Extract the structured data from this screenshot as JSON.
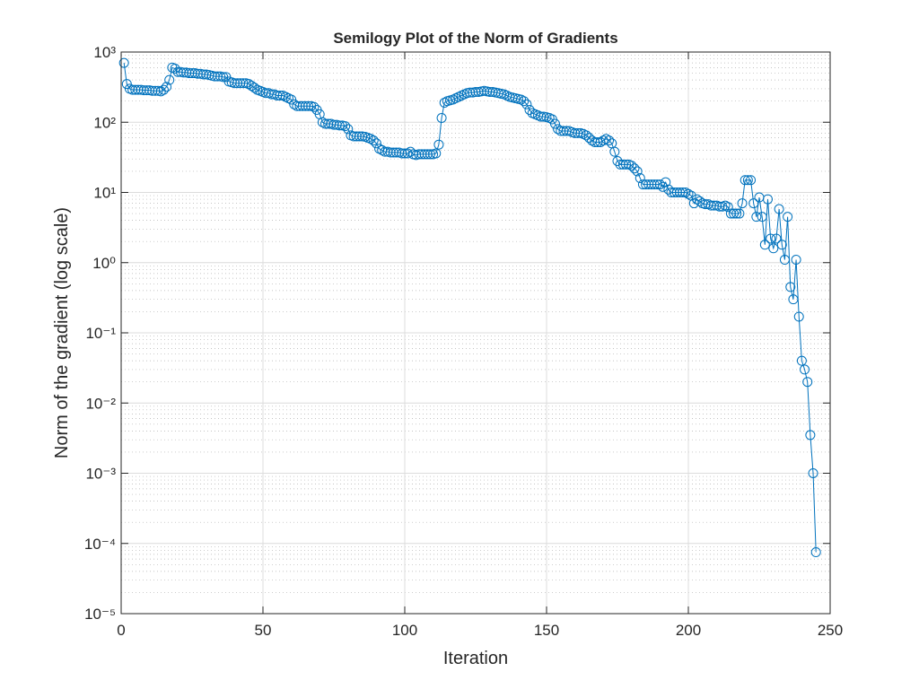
{
  "chart_data": {
    "type": "line",
    "title": "Semilogy Plot of the Norm of Gradients",
    "x_label": "Iteration",
    "y_label": "Norm of the gradient (log scale)",
    "y_scale": "log",
    "grid": true,
    "minor_grid": true,
    "marker": "circle",
    "xlim": [
      0,
      250
    ],
    "xticks": [
      0,
      50,
      100,
      150,
      200,
      250
    ],
    "ylim": [
      1e-05,
      1000
    ],
    "yticks": [
      {
        "value": 1e-05,
        "label": "10⁻⁵"
      },
      {
        "value": 0.0001,
        "label": "10⁻⁴"
      },
      {
        "value": 0.001,
        "label": "10⁻³"
      },
      {
        "value": 0.01,
        "label": "10⁻²"
      },
      {
        "value": 0.1,
        "label": "10⁻¹"
      },
      {
        "value": 1,
        "label": "10⁰"
      },
      {
        "value": 10,
        "label": "10¹"
      },
      {
        "value": 100,
        "label": "10²"
      },
      {
        "value": 1000,
        "label": "10³"
      }
    ],
    "series": [
      {
        "color": "#0072bd",
        "x": [
          1,
          2,
          3,
          4,
          5,
          6,
          7,
          8,
          9,
          10,
          11,
          12,
          13,
          14,
          15,
          16,
          17,
          18,
          19,
          20,
          21,
          22,
          23,
          24,
          25,
          26,
          27,
          28,
          29,
          30,
          31,
          32,
          33,
          34,
          35,
          36,
          37,
          38,
          39,
          40,
          41,
          42,
          43,
          44,
          45,
          46,
          47,
          48,
          49,
          50,
          51,
          52,
          53,
          54,
          55,
          56,
          57,
          58,
          59,
          60,
          61,
          62,
          63,
          64,
          65,
          66,
          67,
          68,
          69,
          70,
          71,
          72,
          73,
          74,
          75,
          76,
          77,
          78,
          79,
          80,
          81,
          82,
          83,
          84,
          85,
          86,
          87,
          88,
          89,
          90,
          91,
          92,
          93,
          94,
          95,
          96,
          97,
          98,
          99,
          100,
          101,
          102,
          103,
          104,
          105,
          106,
          107,
          108,
          109,
          110,
          111,
          112,
          113,
          114,
          115,
          116,
          117,
          118,
          119,
          120,
          121,
          122,
          123,
          124,
          125,
          126,
          127,
          128,
          129,
          130,
          131,
          132,
          133,
          134,
          135,
          136,
          137,
          138,
          139,
          140,
          141,
          142,
          143,
          144,
          145,
          146,
          147,
          148,
          149,
          150,
          151,
          152,
          153,
          154,
          155,
          156,
          157,
          158,
          159,
          160,
          161,
          162,
          163,
          164,
          165,
          166,
          167,
          168,
          169,
          170,
          171,
          172,
          173,
          174,
          175,
          176,
          177,
          178,
          179,
          180,
          181,
          182,
          183,
          184,
          185,
          186,
          187,
          188,
          189,
          190,
          191,
          192,
          193,
          194,
          195,
          196,
          197,
          198,
          199,
          200,
          201,
          202,
          203,
          204,
          205,
          206,
          207,
          208,
          209,
          210,
          211,
          212,
          213,
          214,
          215,
          216,
          217,
          218,
          219,
          220,
          221,
          222,
          223,
          224,
          225,
          226,
          227,
          228,
          229,
          230,
          231,
          232,
          233,
          234,
          235,
          236,
          237,
          238,
          239,
          240,
          241,
          242,
          243,
          244,
          245
        ],
        "values": [
          700,
          350,
          300,
          290,
          290,
          290,
          290,
          285,
          285,
          285,
          280,
          280,
          280,
          275,
          290,
          320,
          400,
          600,
          580,
          520,
          520,
          510,
          510,
          500,
          500,
          500,
          490,
          490,
          480,
          480,
          470,
          460,
          450,
          450,
          450,
          440,
          440,
          380,
          370,
          360,
          360,
          360,
          360,
          360,
          350,
          330,
          310,
          290,
          280,
          270,
          260,
          260,
          250,
          250,
          240,
          240,
          240,
          230,
          220,
          210,
          180,
          170,
          170,
          170,
          170,
          170,
          170,
          165,
          150,
          130,
          100,
          95,
          95,
          95,
          92,
          92,
          90,
          90,
          88,
          80,
          65,
          63,
          63,
          63,
          63,
          62,
          60,
          58,
          55,
          50,
          42,
          40,
          38,
          38,
          37,
          37,
          37,
          37,
          36,
          36,
          36,
          38,
          35,
          34,
          35,
          35,
          35,
          35,
          35,
          35,
          36,
          48,
          115,
          190,
          200,
          205,
          210,
          220,
          230,
          240,
          250,
          260,
          265,
          265,
          270,
          270,
          275,
          280,
          275,
          270,
          270,
          265,
          260,
          255,
          250,
          240,
          230,
          225,
          220,
          215,
          210,
          200,
          180,
          150,
          135,
          130,
          125,
          120,
          120,
          118,
          115,
          110,
          95,
          80,
          75,
          75,
          75,
          75,
          72,
          70,
          70,
          70,
          68,
          65,
          60,
          55,
          52,
          52,
          52,
          55,
          58,
          55,
          50,
          38,
          28,
          25,
          25,
          25,
          25,
          24,
          22,
          20,
          16,
          13,
          13,
          13,
          13,
          13,
          13,
          13,
          12,
          14,
          11,
          10,
          10,
          10,
          10,
          10,
          10,
          9.5,
          9,
          7,
          8,
          7.5,
          7,
          6.8,
          6.8,
          6.5,
          6.5,
          6.5,
          6.3,
          6.3,
          6.5,
          6.2,
          5,
          5,
          5,
          5,
          7,
          15,
          15,
          15,
          7,
          4.5,
          8.5,
          4.5,
          1.8,
          8,
          2.2,
          1.6,
          2.2,
          5.8,
          1.8,
          1.1,
          4.5,
          0.45,
          0.3,
          1.1,
          0.17,
          0.04,
          0.03,
          0.02,
          0.0035,
          0.001,
          7.5e-05
        ]
      }
    ]
  }
}
